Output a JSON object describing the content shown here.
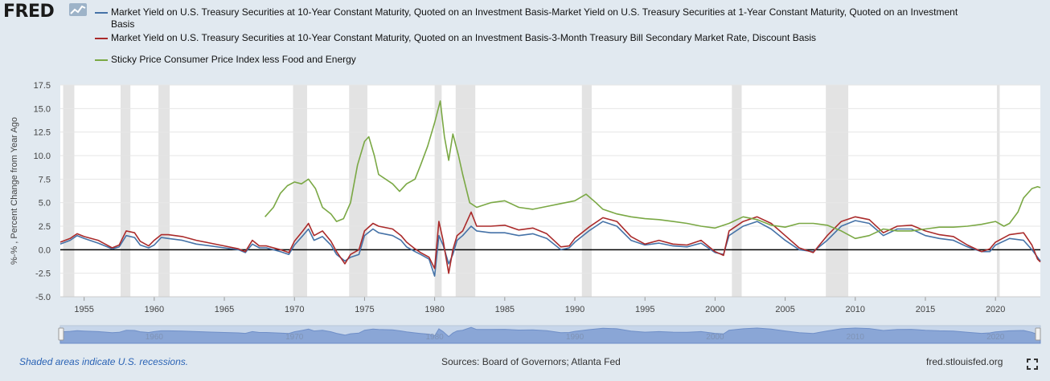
{
  "header": {
    "logo_text": "FRED"
  },
  "legend": [
    {
      "name": "Market Yield on U.S. Treasury Securities at 10-Year Constant Maturity, Quoted on an Investment Basis-Market Yield on U.S. Treasury Securities at 1-Year Constant Maturity, Quoted on an Investment Basis",
      "color": "#4572a7"
    },
    {
      "name": "Market Yield on U.S. Treasury Securities at 10-Year Constant Maturity, Quoted on an Investment Basis-3-Month Treasury Bill Secondary Market Rate, Discount Basis",
      "color": "#aa2a2a"
    },
    {
      "name": "Sticky Price Consumer Price Index less Food and Energy",
      "color": "#7aa844"
    }
  ],
  "footer": {
    "recession_note": "Shaded areas indicate U.S. recessions.",
    "sources": "Sources: Board of Governors; Atlanta Fed",
    "site": "fred.stlouisfed.org"
  },
  "chart_data": {
    "type": "line",
    "ylabel": "%-% , Percent Change from Year Ago",
    "ylim": [
      -5.0,
      17.5
    ],
    "xlim": [
      1953.3,
      2023.2
    ],
    "y_ticks": [
      "17.5",
      "15.0",
      "12.5",
      "10.0",
      "7.5",
      "5.0",
      "2.5",
      "0.0",
      "-2.5",
      "-5.0"
    ],
    "x_ticks": [
      "1955",
      "1960",
      "1965",
      "1970",
      "1975",
      "1980",
      "1985",
      "1990",
      "1995",
      "2000",
      "2005",
      "2010",
      "2015",
      "2020"
    ],
    "navigator_ticks": [
      "1960",
      "1970",
      "1980",
      "1990",
      "2000",
      "2010",
      "2020"
    ],
    "recessions": [
      [
        1953.5,
        1954.3
      ],
      [
        1957.6,
        1958.3
      ],
      [
        1960.3,
        1961.1
      ],
      [
        1969.9,
        1970.9
      ],
      [
        1973.9,
        1975.2
      ],
      [
        1980.0,
        1980.5
      ],
      [
        1981.5,
        1982.9
      ],
      [
        1990.5,
        1991.2
      ],
      [
        2001.2,
        2001.9
      ],
      [
        2007.9,
        2009.5
      ],
      [
        2020.1,
        2020.3
      ]
    ],
    "grid": true,
    "legend_position": "top",
    "series": [
      {
        "color": "#4572a7",
        "x": [
          1953.3,
          1954,
          1954.5,
          1955,
          1956,
          1957,
          1957.5,
          1958,
          1958.6,
          1959,
          1959.6,
          1960,
          1960.5,
          1961,
          1962,
          1963,
          1964,
          1965,
          1966,
          1966.5,
          1967,
          1967.5,
          1968,
          1969,
          1969.6,
          1970,
          1970.6,
          1971,
          1971.4,
          1972,
          1972.6,
          1973,
          1973.6,
          1974,
          1974.6,
          1975,
          1975.6,
          1976,
          1977,
          1977.6,
          1978,
          1978.6,
          1979,
          1979.6,
          1980,
          1980.3,
          1980.6,
          1981,
          1981.3,
          1981.6,
          1982,
          1982.6,
          1983,
          1984,
          1985,
          1986,
          1987,
          1988,
          1989,
          1989.6,
          1990,
          1991,
          1992,
          1993,
          1994,
          1995,
          1996,
          1997,
          1998,
          1999,
          2000,
          2000.6,
          2001,
          2002,
          2003,
          2004,
          2005,
          2006,
          2007,
          2008,
          2009,
          2010,
          2011,
          2012,
          2013,
          2014,
          2015,
          2016,
          2017,
          2018,
          2019,
          2019.6,
          2020,
          2021,
          2022,
          2022.6,
          2023,
          2023.2
        ],
        "y": [
          0.6,
          1.0,
          1.5,
          1.2,
          0.7,
          0.1,
          0.3,
          1.5,
          1.3,
          0.5,
          0.2,
          0.5,
          1.3,
          1.2,
          1.0,
          0.6,
          0.4,
          0.2,
          0.0,
          -0.3,
          0.6,
          0.2,
          0.2,
          -0.2,
          -0.5,
          0.5,
          1.5,
          2.2,
          1.0,
          1.4,
          0.5,
          -0.5,
          -1.2,
          -0.8,
          -0.5,
          1.5,
          2.2,
          1.8,
          1.5,
          1.0,
          0.3,
          -0.2,
          -0.5,
          -1.0,
          -2.8,
          1.5,
          0.5,
          -1.5,
          -0.5,
          1.0,
          1.5,
          2.5,
          2.0,
          1.8,
          1.8,
          1.5,
          1.7,
          1.2,
          0.0,
          0.2,
          0.8,
          2.0,
          3.0,
          2.5,
          1.0,
          0.5,
          0.7,
          0.4,
          0.3,
          0.7,
          -0.3,
          -0.5,
          1.5,
          2.5,
          3.0,
          2.2,
          1.0,
          0.0,
          -0.2,
          1.0,
          2.5,
          3.1,
          2.8,
          1.5,
          2.2,
          2.2,
          1.5,
          1.2,
          1.0,
          0.3,
          -0.2,
          -0.2,
          0.5,
          1.2,
          1.0,
          0.0,
          -0.8,
          -1.2
        ]
      },
      {
        "color": "#aa2a2a",
        "x": [
          1953.3,
          1954,
          1954.5,
          1955,
          1956,
          1957,
          1957.5,
          1958,
          1958.6,
          1959,
          1959.6,
          1960,
          1960.5,
          1961,
          1962,
          1963,
          1964,
          1965,
          1966,
          1966.5,
          1967,
          1967.5,
          1968,
          1969,
          1969.6,
          1970,
          1970.6,
          1971,
          1971.4,
          1972,
          1972.6,
          1973,
          1973.6,
          1974,
          1974.6,
          1975,
          1975.6,
          1976,
          1977,
          1977.6,
          1978,
          1978.6,
          1979,
          1979.6,
          1980,
          1980.3,
          1980.6,
          1981,
          1981.3,
          1981.6,
          1982,
          1982.6,
          1983,
          1984,
          1985,
          1986,
          1987,
          1988,
          1989,
          1989.6,
          1990,
          1991,
          1992,
          1993,
          1994,
          1995,
          1996,
          1997,
          1998,
          1999,
          2000,
          2000.6,
          2001,
          2002,
          2003,
          2004,
          2005,
          2006,
          2007,
          2008,
          2009,
          2010,
          2011,
          2012,
          2013,
          2014,
          2015,
          2016,
          2017,
          2018,
          2019,
          2019.6,
          2020,
          2021,
          2022,
          2022.6,
          2023,
          2023.2
        ],
        "y": [
          0.8,
          1.2,
          1.7,
          1.4,
          1.0,
          0.2,
          0.5,
          2.0,
          1.8,
          0.9,
          0.4,
          1.0,
          1.6,
          1.6,
          1.4,
          1.0,
          0.7,
          0.4,
          0.1,
          -0.2,
          1.0,
          0.4,
          0.4,
          0.0,
          -0.3,
          0.9,
          2.0,
          2.8,
          1.5,
          2.0,
          0.9,
          -0.2,
          -1.5,
          -0.5,
          0.0,
          2.0,
          2.8,
          2.5,
          2.2,
          1.5,
          0.8,
          0.1,
          -0.3,
          -0.8,
          -2.0,
          3.0,
          1.0,
          -2.5,
          0.0,
          1.5,
          2.0,
          4.0,
          2.5,
          2.5,
          2.6,
          2.1,
          2.3,
          1.7,
          0.3,
          0.4,
          1.2,
          2.4,
          3.4,
          3.0,
          1.4,
          0.6,
          1.0,
          0.6,
          0.5,
          1.0,
          -0.2,
          -0.6,
          2.0,
          3.0,
          3.5,
          2.8,
          1.5,
          0.2,
          -0.3,
          1.5,
          3.0,
          3.5,
          3.2,
          1.8,
          2.5,
          2.6,
          2.0,
          1.6,
          1.4,
          0.5,
          -0.2,
          0.1,
          0.8,
          1.6,
          1.8,
          0.5,
          -1.0,
          -1.3
        ]
      },
      {
        "color": "#7aa844",
        "x": [
          1967.9,
          1968.5,
          1969,
          1969.5,
          1970,
          1970.5,
          1971,
          1971.5,
          1972,
          1972.6,
          1973,
          1973.5,
          1974,
          1974.5,
          1975,
          1975.3,
          1975.7,
          1976,
          1977,
          1977.5,
          1978,
          1978.6,
          1979,
          1979.5,
          1980,
          1980.4,
          1980.7,
          1981,
          1981.3,
          1981.7,
          1982,
          1982.5,
          1983,
          1984,
          1985,
          1986,
          1987,
          1988,
          1989,
          1990,
          1990.8,
          1991.5,
          1992,
          1993,
          1994,
          1995,
          1996,
          1997,
          1998,
          1999,
          2000,
          2001,
          2002,
          2003,
          2004,
          2005,
          2006,
          2007,
          2008,
          2009,
          2010,
          2011,
          2012,
          2013,
          2014,
          2015,
          2016,
          2017,
          2018,
          2019,
          2020,
          2020.6,
          2021,
          2021.6,
          2022,
          2022.6,
          2023,
          2023.2
        ],
        "y": [
          3.5,
          4.5,
          6.0,
          6.8,
          7.2,
          7.0,
          7.5,
          6.5,
          4.5,
          3.8,
          3.0,
          3.3,
          5.0,
          9.0,
          11.5,
          12.0,
          10.0,
          8.0,
          7.0,
          6.2,
          7.0,
          7.5,
          9.0,
          11.0,
          13.5,
          15.8,
          12.0,
          9.5,
          12.3,
          10.0,
          8.0,
          5.0,
          4.5,
          5.0,
          5.2,
          4.5,
          4.3,
          4.6,
          4.9,
          5.2,
          5.9,
          5.0,
          4.3,
          3.8,
          3.5,
          3.3,
          3.2,
          3.0,
          2.8,
          2.5,
          2.3,
          2.8,
          3.5,
          3.2,
          2.6,
          2.4,
          2.8,
          2.8,
          2.6,
          2.0,
          1.2,
          1.5,
          2.2,
          2.0,
          2.0,
          2.2,
          2.4,
          2.4,
          2.5,
          2.7,
          3.0,
          2.5,
          2.8,
          4.0,
          5.5,
          6.5,
          6.7,
          6.6
        ]
      }
    ]
  }
}
